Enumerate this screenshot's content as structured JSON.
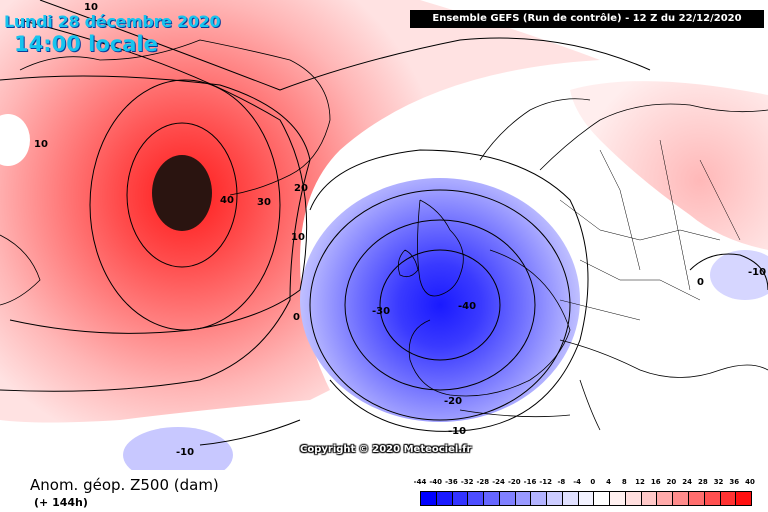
{
  "header": {
    "date": "Lundi 28 décembre 2020",
    "local_time": "14:00 locale",
    "model_info": "Ensemble GEFS  (Run de contrôle)  -  12 Z du 22/12/2020"
  },
  "map": {
    "contour_labels": [
      "10",
      "10",
      "40",
      "30",
      "20",
      "10",
      "0",
      "-30",
      "-40",
      "-20",
      "-10",
      "-10",
      "0",
      "-10"
    ],
    "copyright": "Copyright © 2020 Meteociel.fr"
  },
  "footer": {
    "field_title": "Anom. géop. Z500 (dam)",
    "forecast_hour": "(+ 144h)"
  },
  "legend": {
    "ticks": [
      "-44",
      "-40",
      "-36",
      "-32",
      "-28",
      "-24",
      "-20",
      "-16",
      "-12",
      "-8",
      "-4",
      "0",
      "4",
      "8",
      "12",
      "16",
      "20",
      "24",
      "28",
      "32",
      "36",
      "40"
    ],
    "colors": [
      "#0000ff",
      "#1a1aff",
      "#3333ff",
      "#4d4dff",
      "#6666ff",
      "#8080ff",
      "#9999ff",
      "#b3b3ff",
      "#ccccff",
      "#e0e0ff",
      "#f2f2ff",
      "#ffffff",
      "#fff0f0",
      "#ffdede",
      "#ffc8c8",
      "#ffaaaa",
      "#ff8c8c",
      "#ff6e6e",
      "#ff5050",
      "#ff3232",
      "#ff1010"
    ]
  }
}
